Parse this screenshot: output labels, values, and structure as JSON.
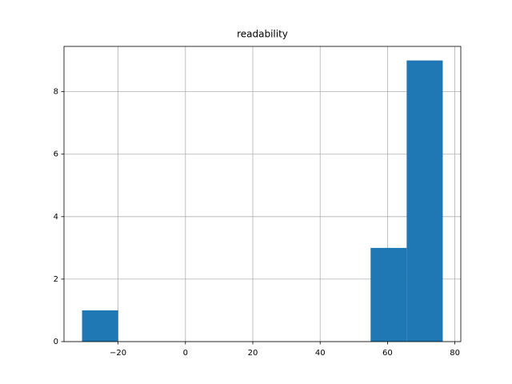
{
  "chart_data": {
    "type": "histogram",
    "title": "readability",
    "bins": [
      -30.7,
      -19.99,
      -9.28,
      1.43,
      12.14,
      22.85,
      33.56,
      44.27,
      54.98,
      65.69,
      76.4
    ],
    "values": [
      1,
      0,
      0,
      0,
      0,
      0,
      0,
      0,
      3,
      9
    ],
    "color": "#1f77b4",
    "xlim": [
      -36.06,
      81.76
    ],
    "xticks": [
      {
        "value": -20,
        "label": "−20"
      },
      0,
      20,
      40,
      60,
      80
    ],
    "ylim": [
      0,
      9.45
    ],
    "yticks": [
      0,
      2,
      4,
      6,
      8
    ],
    "grid": true
  }
}
